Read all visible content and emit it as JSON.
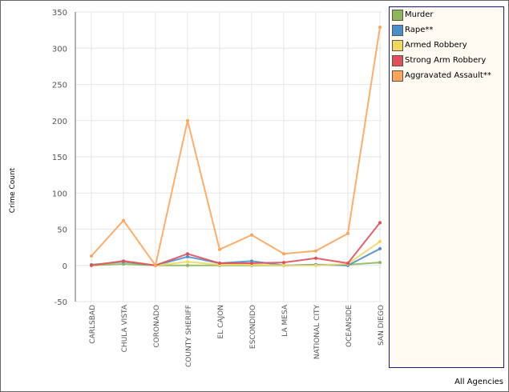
{
  "chart_data": {
    "type": "line",
    "title": "",
    "xlabel": "",
    "ylabel": "Crime Count",
    "ylim": [
      -50,
      350
    ],
    "yticks": [
      -50,
      0,
      50,
      100,
      150,
      200,
      250,
      300,
      350
    ],
    "grid": true,
    "legend_position": "right",
    "categories": [
      "CARLSBAD",
      "CHULA VISTA",
      "CORONADO",
      "COUNTY SHERIFF",
      "EL CAJON",
      "ESCONDIDO",
      "LA MESA",
      "NATIONAL CITY",
      "OCEANSIDE",
      "SAN DIEGO"
    ],
    "series": [
      {
        "name": "Murder",
        "color": "#8db85a",
        "values": [
          0,
          2,
          0,
          0,
          0,
          0,
          0,
          1,
          1,
          4
        ]
      },
      {
        "name": "Rape**",
        "color": "#4a8fcc",
        "values": [
          1,
          5,
          0,
          12,
          3,
          6,
          0,
          1,
          0,
          23
        ]
      },
      {
        "name": "Armed Robbery",
        "color": "#f0d860",
        "values": [
          0,
          6,
          0,
          5,
          1,
          1,
          0,
          0,
          2,
          33
        ]
      },
      {
        "name": "Strong Arm Robbery",
        "color": "#e0505a",
        "values": [
          0,
          6,
          0,
          16,
          3,
          3,
          4,
          10,
          3,
          59
        ]
      },
      {
        "name": "Aggravated Assault**",
        "color": "#fca55a",
        "values": [
          13,
          62,
          0,
          200,
          22,
          42,
          16,
          20,
          44,
          329
        ]
      }
    ]
  },
  "footer": "All Agencies"
}
